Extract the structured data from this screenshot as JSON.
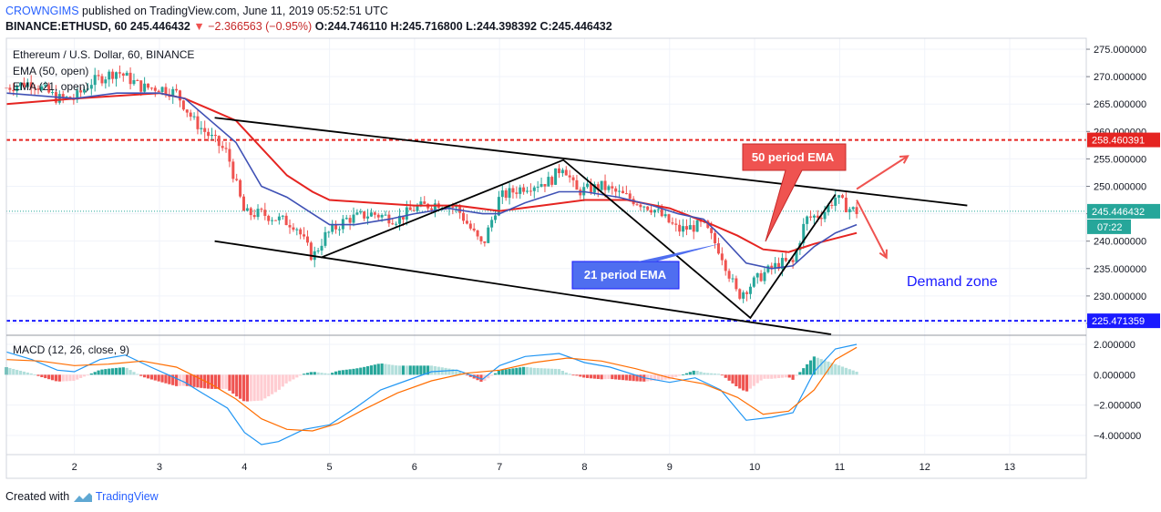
{
  "header": {
    "publisher": "CROWNGIMS",
    "published_text": "published on TradingView.com, June 11, 2019 05:52:51 UTC",
    "symbol_line": "BINANCE:ETHUSD, 60",
    "last_price": "245.446432",
    "change": "−2.366563 (−0.95%)",
    "open": "O:244.746110",
    "high": "H:245.716800",
    "low": "L:244.398392",
    "close": "C:245.446432"
  },
  "legend": {
    "title": "Ethereum / U.S. Dollar, 60, BINANCE",
    "ema50": "EMA (50, open)",
    "ema21": "EMA (21, open)",
    "macd": "MACD (12, 26, close, 9)"
  },
  "annotations": {
    "ema50_callout": "50 period EMA",
    "ema21_callout": "21 period EMA",
    "demand_zone": "Demand zone"
  },
  "footer": {
    "created_with": "Created with",
    "brand": "TradingView"
  },
  "colors": {
    "up": "#26a69a",
    "down": "#ef5350",
    "ema50": "#e52421",
    "ema21": "#3f51b5",
    "resistance": "#e52421",
    "support": "#1a1aff",
    "callout_red": "#ef5350",
    "callout_blue": "#4f6ef0",
    "macd_line": "#2196f3",
    "signal_line": "#ff6d00",
    "demand_text": "#1a1aff"
  },
  "chart_data": {
    "type": "candlestick",
    "x_ticks": [
      "2",
      "3",
      "4",
      "5",
      "6",
      "7",
      "8",
      "9",
      "10",
      "11",
      "12",
      "13"
    ],
    "x_range": [
      1.2,
      13.9
    ],
    "price_axis": {
      "ticks": [
        "275.000000",
        "270.000000",
        "265.000000",
        "260.000000",
        "255.000000",
        "250.000000",
        "245.000000",
        "240.000000",
        "235.000000",
        "230.000000",
        "225.000000"
      ],
      "range": [
        223,
        277
      ]
    },
    "levels": [
      {
        "name": "resistance",
        "value": 258.460391,
        "label": "258.460391",
        "style": "dashed"
      },
      {
        "name": "support",
        "value": 225.471359,
        "label": "225.471359",
        "style": "dashed"
      },
      {
        "name": "last",
        "value": 245.446432,
        "label": "245.446432",
        "style": "dotted"
      }
    ],
    "countdown": "07:22",
    "price_path": [
      [
        1.2,
        268
      ],
      [
        1.5,
        269
      ],
      [
        1.8,
        266
      ],
      [
        2.0,
        266
      ],
      [
        2.2,
        269
      ],
      [
        2.5,
        271
      ],
      [
        2.8,
        268
      ],
      [
        3.0,
        268
      ],
      [
        3.2,
        267
      ],
      [
        3.4,
        262
      ],
      [
        3.6,
        259
      ],
      [
        3.8,
        256
      ],
      [
        4.0,
        245
      ],
      [
        4.2,
        245
      ],
      [
        4.4,
        244
      ],
      [
        4.6,
        243
      ],
      [
        4.8,
        237
      ],
      [
        4.95,
        241
      ],
      [
        5.2,
        244
      ],
      [
        5.5,
        245
      ],
      [
        5.8,
        244
      ],
      [
        6.0,
        246
      ],
      [
        6.3,
        247
      ],
      [
        6.5,
        246
      ],
      [
        6.8,
        239
      ],
      [
        7.0,
        248
      ],
      [
        7.3,
        250
      ],
      [
        7.6,
        251
      ],
      [
        7.75,
        254
      ],
      [
        7.9,
        249
      ],
      [
        8.2,
        250
      ],
      [
        8.5,
        248
      ],
      [
        8.8,
        246
      ],
      [
        9.1,
        242
      ],
      [
        9.4,
        243
      ],
      [
        9.6,
        238
      ],
      [
        9.8,
        230
      ],
      [
        9.95,
        232
      ],
      [
        10.1,
        234
      ],
      [
        10.3,
        236
      ],
      [
        10.45,
        236
      ],
      [
        10.6,
        244
      ],
      [
        10.8,
        245
      ],
      [
        10.95,
        248
      ],
      [
        11.1,
        246
      ],
      [
        11.2,
        245.4
      ]
    ],
    "ema21_path": [
      [
        1.2,
        267
      ],
      [
        2.0,
        266
      ],
      [
        2.5,
        267
      ],
      [
        3.0,
        267
      ],
      [
        3.3,
        266
      ],
      [
        3.6,
        262
      ],
      [
        3.9,
        258
      ],
      [
        4.2,
        250
      ],
      [
        4.5,
        248
      ],
      [
        4.8,
        245
      ],
      [
        5.0,
        243
      ],
      [
        5.3,
        243
      ],
      [
        5.7,
        244
      ],
      [
        6.0,
        245
      ],
      [
        6.4,
        246
      ],
      [
        6.8,
        245
      ],
      [
        7.0,
        245
      ],
      [
        7.3,
        247
      ],
      [
        7.7,
        249
      ],
      [
        8.0,
        249
      ],
      [
        8.4,
        248
      ],
      [
        8.8,
        246.5
      ],
      [
        9.1,
        245
      ],
      [
        9.4,
        244
      ],
      [
        9.6,
        241
      ],
      [
        9.9,
        236
      ],
      [
        10.2,
        235
      ],
      [
        10.45,
        235.5
      ],
      [
        10.7,
        239
      ],
      [
        10.95,
        241.5
      ],
      [
        11.2,
        243
      ]
    ],
    "ema50_path": [
      [
        1.2,
        265
      ],
      [
        2.0,
        266
      ],
      [
        2.5,
        266.5
      ],
      [
        3.0,
        267
      ],
      [
        3.3,
        266
      ],
      [
        3.6,
        264
      ],
      [
        3.9,
        262
      ],
      [
        4.2,
        257
      ],
      [
        4.5,
        252
      ],
      [
        4.8,
        249
      ],
      [
        5.0,
        247.5
      ],
      [
        5.5,
        247
      ],
      [
        6.0,
        246.5
      ],
      [
        6.5,
        246.5
      ],
      [
        7.0,
        245.5
      ],
      [
        7.5,
        246.5
      ],
      [
        8.0,
        247.5
      ],
      [
        8.5,
        247.5
      ],
      [
        9.0,
        246
      ],
      [
        9.5,
        243
      ],
      [
        9.8,
        241
      ],
      [
        10.1,
        238.5
      ],
      [
        10.4,
        238
      ],
      [
        10.7,
        239.5
      ],
      [
        10.95,
        240.5
      ],
      [
        11.2,
        241.5
      ]
    ],
    "trendlines": [
      {
        "name": "channel-top",
        "from": [
          3.65,
          262.5
        ],
        "to": [
          12.5,
          246.5
        ]
      },
      {
        "name": "channel-bottom",
        "from": [
          3.65,
          240
        ],
        "to": [
          10.9,
          223
        ]
      },
      {
        "name": "zigzag",
        "points": [
          [
            4.9,
            237
          ],
          [
            7.75,
            254.8
          ],
          [
            9.95,
            226
          ],
          [
            10.95,
            248.5
          ]
        ]
      }
    ],
    "arrows": [
      {
        "name": "arrow-up",
        "from": [
          11.2,
          249.5
        ],
        "to": [
          11.8,
          255.5
        ]
      },
      {
        "name": "arrow-down",
        "from": [
          11.2,
          247.5
        ],
        "to": [
          11.55,
          237
        ]
      }
    ],
    "macd": {
      "title": "MACD (12, 26, close, 9)",
      "ticks": [
        "2.000000",
        "0.000000",
        "−2.000000",
        "−4.000000"
      ],
      "range": [
        -5.2,
        2.6
      ],
      "macd_path": [
        [
          1.2,
          1.5
        ],
        [
          1.5,
          1.0
        ],
        [
          1.8,
          0.3
        ],
        [
          2.0,
          0.2
        ],
        [
          2.3,
          1.0
        ],
        [
          2.6,
          1.3
        ],
        [
          2.9,
          0.5
        ],
        [
          3.1,
          0.0
        ],
        [
          3.3,
          -0.5
        ],
        [
          3.5,
          -1.2
        ],
        [
          3.8,
          -2.2
        ],
        [
          4.0,
          -3.8
        ],
        [
          4.2,
          -4.6
        ],
        [
          4.4,
          -4.4
        ],
        [
          4.7,
          -3.6
        ],
        [
          5.0,
          -3.3
        ],
        [
          5.3,
          -2.2
        ],
        [
          5.6,
          -1.0
        ],
        [
          5.9,
          -0.4
        ],
        [
          6.2,
          0.2
        ],
        [
          6.5,
          0.3
        ],
        [
          6.8,
          -0.3
        ],
        [
          7.0,
          0.6
        ],
        [
          7.3,
          1.2
        ],
        [
          7.7,
          1.4
        ],
        [
          8.0,
          0.8
        ],
        [
          8.3,
          0.5
        ],
        [
          8.7,
          -0.2
        ],
        [
          9.0,
          -0.5
        ],
        [
          9.3,
          -0.2
        ],
        [
          9.6,
          -1.0
        ],
        [
          9.9,
          -3.0
        ],
        [
          10.2,
          -2.8
        ],
        [
          10.45,
          -2.5
        ],
        [
          10.7,
          0.2
        ],
        [
          10.95,
          1.7
        ],
        [
          11.2,
          2.0
        ]
      ],
      "signal_path": [
        [
          1.2,
          1.0
        ],
        [
          1.6,
          0.9
        ],
        [
          2.0,
          0.6
        ],
        [
          2.4,
          0.7
        ],
        [
          2.8,
          0.9
        ],
        [
          3.2,
          0.5
        ],
        [
          3.6,
          -0.6
        ],
        [
          3.9,
          -1.6
        ],
        [
          4.2,
          -2.9
        ],
        [
          4.5,
          -3.6
        ],
        [
          4.8,
          -3.7
        ],
        [
          5.1,
          -3.2
        ],
        [
          5.4,
          -2.3
        ],
        [
          5.8,
          -1.2
        ],
        [
          6.2,
          -0.4
        ],
        [
          6.6,
          0.1
        ],
        [
          7.0,
          0.3
        ],
        [
          7.4,
          0.8
        ],
        [
          7.8,
          1.1
        ],
        [
          8.2,
          0.9
        ],
        [
          8.6,
          0.4
        ],
        [
          9.0,
          -0.2
        ],
        [
          9.4,
          -0.6
        ],
        [
          9.8,
          -1.5
        ],
        [
          10.1,
          -2.6
        ],
        [
          10.4,
          -2.4
        ],
        [
          10.7,
          -1.0
        ],
        [
          10.95,
          1.0
        ],
        [
          11.2,
          1.8
        ]
      ]
    }
  }
}
